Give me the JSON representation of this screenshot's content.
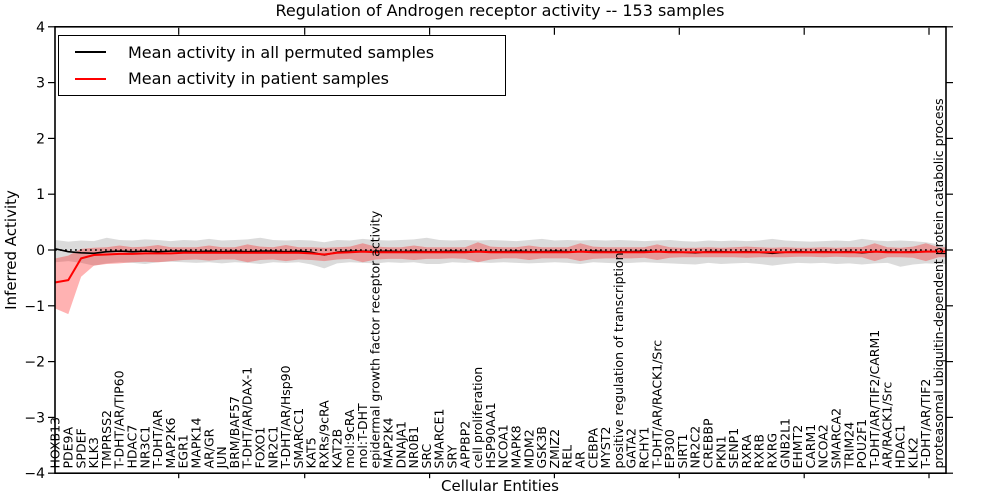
{
  "title": "Regulation of Androgen receptor activity -- 153 samples",
  "legend": {
    "items": [
      {
        "label": "Mean activity in all permuted samples",
        "color": "#000000"
      },
      {
        "label": "Mean activity in patient samples",
        "color": "#ff0000"
      }
    ],
    "position": "upper left"
  },
  "axes": {
    "x_label": "Cellular Entities",
    "y_label": "Inferred Activity",
    "y_tick_labels": [
      "4",
      "3",
      "2",
      "1",
      "0",
      "−1",
      "−2",
      "−3",
      "−4"
    ],
    "y_range": [
      -4,
      4
    ]
  },
  "colors": {
    "permuted_line": "#000000",
    "permuted_band": "rgba(0,0,0,0.14)",
    "patient_line": "#ff0000",
    "patient_band": "rgba(255,0,0,0.30)",
    "background": "#ffffff",
    "zero_line": "#000000"
  },
  "chart_data": {
    "type": "line",
    "title": "Regulation of Androgen receptor activity -- 153 samples",
    "xlabel": "Cellular Entities",
    "ylabel": "Inferred Activity",
    "ylim": [
      -4,
      4
    ],
    "y_ticks": [
      4,
      3,
      2,
      1,
      0,
      -1,
      -2,
      -3,
      -4
    ],
    "x_tick_rotation": 90,
    "grid": false,
    "zero_line_style": "dotted",
    "legend_position": "upper left",
    "categories": [
      "HOXB13",
      "PDE9A",
      "SPDEF",
      "KLK3",
      "TMPRSS2",
      "T-DHT/AR/TIP60",
      "HDAC7",
      "NR3C1",
      "T-DHT/AR",
      "MAP2K6",
      "EGR1",
      "MAPK14",
      "AR/GR",
      "JUN",
      "BRM/BAF57",
      "T-DHT/AR/DAX-1",
      "FOXO1",
      "NR2C1",
      "T-DHT/AR/Hsp90",
      "SMARCC1",
      "KAT5",
      "RXRs/9cRA",
      "KAT2B",
      "mol:9cRA",
      "mol:T-DHT",
      "epidermal growth factor receptor activity",
      "MAP2K4",
      "DNAJA1",
      "NR0B1",
      "SRC",
      "SMARCE1",
      "SRY",
      "APPBP2",
      "cell proliferation",
      "HSP90AA1",
      "NCOA1",
      "MAPK8",
      "MDM2",
      "GSK3B",
      "ZMIZ2",
      "REL",
      "AR",
      "CEBPA",
      "MYST2",
      "positive regulation of transcription",
      "GATA2",
      "RCHY1",
      "T-DHT/AR/RACK1/Src",
      "EP300",
      "SIRT1",
      "NR2C2",
      "CREBBP",
      "PKN1",
      "SENP1",
      "RXRA",
      "RXRB",
      "RXRG",
      "GNB2L1",
      "EHMT2",
      "CARM1",
      "NCOA2",
      "SMARCA2",
      "TRIM24",
      "POU2F1",
      "T-DHT/AR/TIF2/CARM1",
      "AR/RACK1/Src",
      "HDAC1",
      "KLK2",
      "T-DHT/AR/TIF2",
      "proteasomal ubiquitin-dependent protein catabolic process"
    ],
    "series": [
      {
        "name": "Mean activity in all permuted samples",
        "color": "#000000",
        "band_color": "rgba(0,0,0,0.14)",
        "values": [
          0.02,
          -0.03,
          -0.05,
          -0.06,
          -0.03,
          -0.02,
          -0.03,
          -0.02,
          -0.03,
          -0.02,
          -0.02,
          -0.03,
          -0.02,
          -0.03,
          -0.02,
          -0.03,
          -0.02,
          -0.02,
          -0.03,
          -0.02,
          -0.04,
          -0.09,
          -0.04,
          -0.02,
          -0.02,
          -0.03,
          -0.02,
          -0.03,
          -0.02,
          -0.03,
          -0.03,
          -0.02,
          -0.03,
          -0.02,
          -0.03,
          -0.03,
          -0.02,
          -0.03,
          -0.03,
          -0.02,
          -0.03,
          -0.03,
          -0.02,
          -0.03,
          -0.03,
          -0.03,
          -0.02,
          -0.03,
          -0.03,
          -0.04,
          -0.05,
          -0.03,
          -0.03,
          -0.04,
          -0.03,
          -0.04,
          -0.06,
          -0.04,
          -0.03,
          -0.04,
          -0.03,
          -0.04,
          -0.03,
          -0.05,
          -0.03,
          -0.03,
          -0.04,
          -0.03,
          -0.03,
          -0.03
        ],
        "band_upper": [
          0.18,
          0.15,
          0.17,
          0.16,
          0.22,
          0.18,
          0.17,
          0.19,
          0.18,
          0.16,
          0.18,
          0.17,
          0.2,
          0.17,
          0.18,
          0.19,
          0.22,
          0.18,
          0.17,
          0.18,
          0.17,
          0.14,
          0.18,
          0.17,
          0.2,
          0.18,
          0.17,
          0.18,
          0.19,
          0.22,
          0.18,
          0.17,
          0.18,
          0.17,
          0.18,
          0.17,
          0.16,
          0.18,
          0.2,
          0.17,
          0.18,
          0.17,
          0.18,
          0.17,
          0.18,
          0.17,
          0.16,
          0.17,
          0.18,
          0.16,
          0.15,
          0.17,
          0.16,
          0.17,
          0.16,
          0.17,
          0.2,
          0.17,
          0.16,
          0.15,
          0.16,
          0.17,
          0.16,
          0.2,
          0.17,
          0.16,
          0.17,
          0.16,
          0.14,
          0.1
        ],
        "band_lower": [
          -0.22,
          -0.2,
          -0.23,
          -0.28,
          -0.24,
          -0.22,
          -0.23,
          -0.25,
          -0.22,
          -0.21,
          -0.22,
          -0.23,
          -0.22,
          -0.24,
          -0.22,
          -0.23,
          -0.25,
          -0.22,
          -0.23,
          -0.22,
          -0.26,
          -0.33,
          -0.24,
          -0.22,
          -0.23,
          -0.24,
          -0.22,
          -0.23,
          -0.22,
          -0.25,
          -0.25,
          -0.22,
          -0.23,
          -0.22,
          -0.23,
          -0.22,
          -0.23,
          -0.24,
          -0.23,
          -0.22,
          -0.23,
          -0.25,
          -0.22,
          -0.23,
          -0.24,
          -0.23,
          -0.22,
          -0.23,
          -0.24,
          -0.25,
          -0.26,
          -0.23,
          -0.25,
          -0.24,
          -0.23,
          -0.25,
          -0.28,
          -0.25,
          -0.23,
          -0.24,
          -0.23,
          -0.25,
          -0.24,
          -0.26,
          -0.24,
          -0.23,
          -0.3,
          -0.26,
          -0.24,
          -0.25
        ]
      },
      {
        "name": "Mean activity in patient samples",
        "color": "#ff0000",
        "band_color": "rgba(255,0,0,0.30)",
        "values": [
          -0.58,
          -0.54,
          -0.15,
          -0.09,
          -0.08,
          -0.07,
          -0.07,
          -0.06,
          -0.06,
          -0.06,
          -0.05,
          -0.05,
          -0.05,
          -0.05,
          -0.05,
          -0.05,
          -0.05,
          -0.05,
          -0.05,
          -0.05,
          -0.06,
          -0.08,
          -0.05,
          -0.04,
          -0.03,
          -0.04,
          -0.04,
          -0.04,
          -0.04,
          -0.04,
          -0.04,
          -0.04,
          -0.04,
          -0.03,
          -0.04,
          -0.04,
          -0.04,
          -0.04,
          -0.04,
          -0.04,
          -0.04,
          -0.03,
          -0.04,
          -0.04,
          -0.04,
          -0.04,
          -0.04,
          -0.03,
          -0.04,
          -0.04,
          -0.04,
          -0.04,
          -0.04,
          -0.04,
          -0.04,
          -0.04,
          -0.04,
          -0.04,
          -0.04,
          -0.04,
          -0.04,
          -0.04,
          -0.04,
          -0.04,
          -0.03,
          -0.04,
          -0.04,
          -0.04,
          -0.03,
          -0.03
        ],
        "band_upper": [
          -0.15,
          -0.1,
          0.02,
          0.04,
          0.05,
          0.08,
          0.05,
          0.06,
          0.09,
          0.05,
          0.05,
          0.05,
          0.08,
          0.05,
          0.05,
          0.1,
          0.06,
          0.05,
          0.09,
          0.05,
          0.05,
          0.04,
          0.05,
          0.06,
          0.12,
          0.06,
          0.05,
          0.05,
          0.08,
          0.05,
          0.05,
          0.05,
          0.05,
          0.14,
          0.06,
          0.05,
          0.05,
          0.08,
          0.05,
          0.05,
          0.05,
          0.12,
          0.06,
          0.05,
          0.05,
          0.05,
          0.05,
          0.1,
          0.05,
          0.04,
          0.04,
          0.05,
          0.04,
          0.05,
          0.06,
          0.05,
          0.04,
          0.05,
          0.04,
          0.04,
          0.05,
          0.04,
          0.05,
          0.05,
          0.12,
          0.05,
          0.04,
          0.06,
          0.12,
          0.05
        ],
        "band_lower": [
          -1.05,
          -1.15,
          -0.48,
          -0.28,
          -0.25,
          -0.24,
          -0.22,
          -0.21,
          -0.22,
          -0.2,
          -0.18,
          -0.17,
          -0.19,
          -0.17,
          -0.17,
          -0.22,
          -0.18,
          -0.17,
          -0.2,
          -0.17,
          -0.18,
          -0.2,
          -0.17,
          -0.16,
          -0.22,
          -0.17,
          -0.16,
          -0.16,
          -0.18,
          -0.16,
          -0.16,
          -0.15,
          -0.16,
          -0.22,
          -0.17,
          -0.15,
          -0.15,
          -0.18,
          -0.15,
          -0.15,
          -0.15,
          -0.2,
          -0.16,
          -0.15,
          -0.15,
          -0.15,
          -0.14,
          -0.18,
          -0.14,
          -0.13,
          -0.13,
          -0.13,
          -0.13,
          -0.13,
          -0.14,
          -0.13,
          -0.13,
          -0.13,
          -0.12,
          -0.12,
          -0.13,
          -0.12,
          -0.13,
          -0.13,
          -0.2,
          -0.13,
          -0.13,
          -0.14,
          -0.2,
          -0.13
        ]
      }
    ]
  }
}
